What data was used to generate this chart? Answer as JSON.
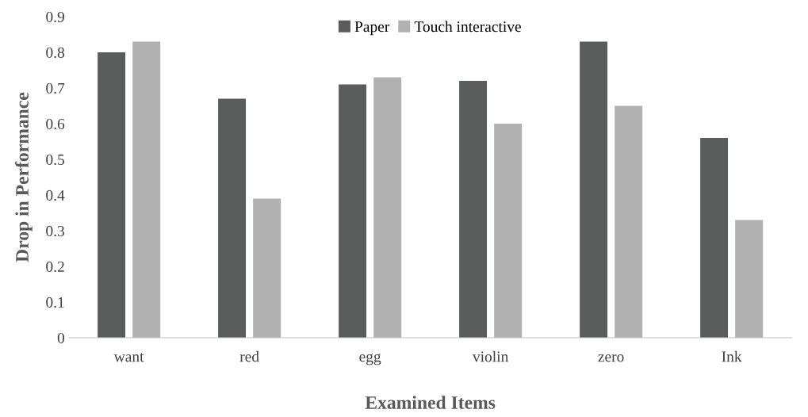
{
  "chart_data": {
    "type": "bar",
    "xlabel": "Examined Items",
    "ylabel": "Drop in Performance",
    "categories": [
      "want",
      "red",
      "egg",
      "violin",
      "zero",
      "Ink"
    ],
    "series": [
      {
        "name": "Paper",
        "color": "#5b5d5c",
        "values": [
          0.8,
          0.67,
          0.71,
          0.72,
          0.83,
          0.56
        ]
      },
      {
        "name": "Touch interactive",
        "color": "#b1b1b1",
        "values": [
          0.83,
          0.39,
          0.73,
          0.6,
          0.65,
          0.33
        ]
      }
    ],
    "ylim": [
      0,
      0.9
    ],
    "yticks": [
      0,
      0.1,
      0.2,
      0.3,
      0.4,
      0.5,
      0.6,
      0.7,
      0.8,
      0.9
    ],
    "grid": false,
    "legend": "top"
  }
}
